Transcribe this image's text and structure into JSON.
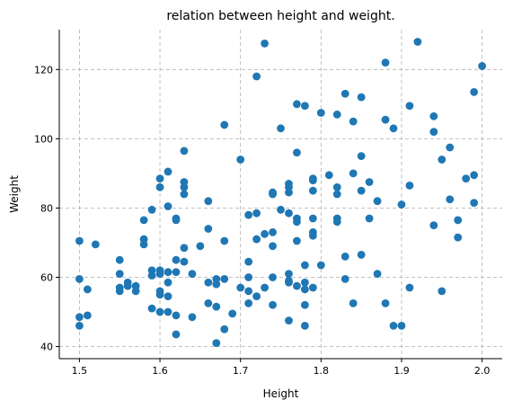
{
  "chart_data": {
    "type": "scatter",
    "title": "relation between height and weight.",
    "xlabel": "Height",
    "ylabel": "Weight",
    "xlim": [
      1.475,
      2.025
    ],
    "ylim": [
      36.5,
      131.5
    ],
    "xticks": [
      1.5,
      1.6,
      1.7,
      1.8,
      1.9,
      2.0
    ],
    "xtick_labels": [
      "1.5",
      "1.6",
      "1.7",
      "1.8",
      "1.9",
      "2.0"
    ],
    "yticks": [
      40,
      60,
      80,
      100,
      120
    ],
    "ytick_labels": [
      "40",
      "60",
      "80",
      "100",
      "120"
    ],
    "grid": true,
    "marker_color": "#1f77b4",
    "points": [
      [
        1.5,
        70.5
      ],
      [
        1.5,
        59.5
      ],
      [
        1.5,
        48.5
      ],
      [
        1.5,
        46
      ],
      [
        1.51,
        56.5
      ],
      [
        1.51,
        49
      ],
      [
        1.52,
        69.5
      ],
      [
        1.55,
        65
      ],
      [
        1.55,
        61
      ],
      [
        1.55,
        57
      ],
      [
        1.55,
        56
      ],
      [
        1.56,
        58.5
      ],
      [
        1.56,
        57.5
      ],
      [
        1.57,
        57.5
      ],
      [
        1.57,
        56
      ],
      [
        1.58,
        76.5
      ],
      [
        1.58,
        71
      ],
      [
        1.58,
        69.5
      ],
      [
        1.59,
        79.5
      ],
      [
        1.59,
        62
      ],
      [
        1.59,
        60.5
      ],
      [
        1.59,
        51
      ],
      [
        1.6,
        88.5
      ],
      [
        1.6,
        86
      ],
      [
        1.6,
        62
      ],
      [
        1.6,
        61
      ],
      [
        1.6,
        56
      ],
      [
        1.6,
        55
      ],
      [
        1.6,
        50
      ],
      [
        1.61,
        90.5
      ],
      [
        1.61,
        80.5
      ],
      [
        1.61,
        61.5
      ],
      [
        1.61,
        58.5
      ],
      [
        1.61,
        54.5
      ],
      [
        1.61,
        50
      ],
      [
        1.62,
        77
      ],
      [
        1.62,
        76.5
      ],
      [
        1.62,
        65
      ],
      [
        1.62,
        61.5
      ],
      [
        1.62,
        49
      ],
      [
        1.62,
        43.5
      ],
      [
        1.63,
        96.5
      ],
      [
        1.63,
        87.5
      ],
      [
        1.63,
        86
      ],
      [
        1.63,
        84
      ],
      [
        1.63,
        68.5
      ],
      [
        1.63,
        64.5
      ],
      [
        1.64,
        61
      ],
      [
        1.64,
        48.5
      ],
      [
        1.65,
        69
      ],
      [
        1.66,
        82
      ],
      [
        1.66,
        74
      ],
      [
        1.66,
        58.5
      ],
      [
        1.66,
        52.5
      ],
      [
        1.67,
        59.5
      ],
      [
        1.67,
        58
      ],
      [
        1.67,
        51.5
      ],
      [
        1.67,
        41
      ],
      [
        1.68,
        104
      ],
      [
        1.68,
        70.5
      ],
      [
        1.68,
        59.5
      ],
      [
        1.68,
        45
      ],
      [
        1.69,
        49.5
      ],
      [
        1.7,
        94
      ],
      [
        1.7,
        57
      ],
      [
        1.71,
        78
      ],
      [
        1.71,
        64.5
      ],
      [
        1.71,
        60
      ],
      [
        1.71,
        56
      ],
      [
        1.71,
        52.5
      ],
      [
        1.72,
        118
      ],
      [
        1.72,
        78.5
      ],
      [
        1.72,
        71
      ],
      [
        1.72,
        54.5
      ],
      [
        1.73,
        127.5
      ],
      [
        1.73,
        72.5
      ],
      [
        1.73,
        57
      ],
      [
        1.74,
        84.5
      ],
      [
        1.74,
        84
      ],
      [
        1.74,
        73
      ],
      [
        1.74,
        69
      ],
      [
        1.74,
        60
      ],
      [
        1.74,
        52
      ],
      [
        1.75,
        103
      ],
      [
        1.75,
        79.5
      ],
      [
        1.76,
        87
      ],
      [
        1.76,
        86
      ],
      [
        1.76,
        84.5
      ],
      [
        1.76,
        78.5
      ],
      [
        1.76,
        61
      ],
      [
        1.76,
        59
      ],
      [
        1.76,
        58.5
      ],
      [
        1.76,
        47.5
      ],
      [
        1.77,
        110
      ],
      [
        1.77,
        96
      ],
      [
        1.77,
        77
      ],
      [
        1.77,
        76
      ],
      [
        1.77,
        70.5
      ],
      [
        1.77,
        57.5
      ],
      [
        1.78,
        109.5
      ],
      [
        1.78,
        63.5
      ],
      [
        1.78,
        58.5
      ],
      [
        1.78,
        56.5
      ],
      [
        1.78,
        52
      ],
      [
        1.78,
        46
      ],
      [
        1.79,
        88.5
      ],
      [
        1.79,
        88
      ],
      [
        1.79,
        85
      ],
      [
        1.79,
        77
      ],
      [
        1.79,
        73
      ],
      [
        1.79,
        72
      ],
      [
        1.79,
        57
      ],
      [
        1.8,
        107.5
      ],
      [
        1.8,
        63.5
      ],
      [
        1.81,
        89.5
      ],
      [
        1.82,
        107
      ],
      [
        1.82,
        86
      ],
      [
        1.82,
        84
      ],
      [
        1.82,
        77
      ],
      [
        1.82,
        76
      ],
      [
        1.83,
        113
      ],
      [
        1.83,
        66
      ],
      [
        1.83,
        59.5
      ],
      [
        1.84,
        105
      ],
      [
        1.84,
        90
      ],
      [
        1.84,
        52.5
      ],
      [
        1.85,
        112
      ],
      [
        1.85,
        95
      ],
      [
        1.85,
        85
      ],
      [
        1.85,
        66.5
      ],
      [
        1.86,
        87.5
      ],
      [
        1.86,
        77
      ],
      [
        1.87,
        82
      ],
      [
        1.87,
        61
      ],
      [
        1.88,
        122
      ],
      [
        1.88,
        105.5
      ],
      [
        1.88,
        52.5
      ],
      [
        1.89,
        103
      ],
      [
        1.89,
        46
      ],
      [
        1.9,
        81
      ],
      [
        1.9,
        46
      ],
      [
        1.91,
        109.5
      ],
      [
        1.91,
        86.5
      ],
      [
        1.91,
        57
      ],
      [
        1.92,
        128
      ],
      [
        1.94,
        106.5
      ],
      [
        1.94,
        102
      ],
      [
        1.94,
        75
      ],
      [
        1.95,
        94
      ],
      [
        1.95,
        56
      ],
      [
        1.96,
        97.5
      ],
      [
        1.96,
        82.5
      ],
      [
        1.97,
        76.5
      ],
      [
        1.97,
        71.5
      ],
      [
        1.98,
        88.5
      ],
      [
        1.99,
        113.5
      ],
      [
        1.99,
        89.5
      ],
      [
        1.99,
        81.5
      ],
      [
        2.0,
        121
      ]
    ]
  }
}
